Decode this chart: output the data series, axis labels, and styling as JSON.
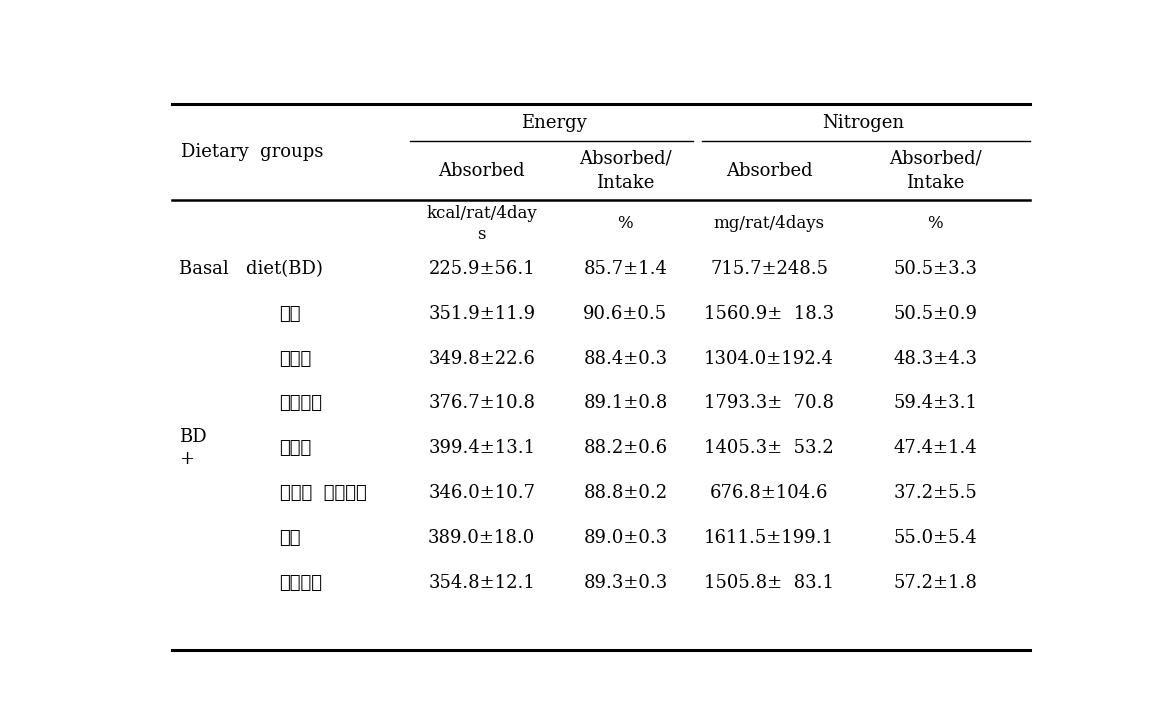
{
  "energy_group_label": "Energy",
  "nitrogen_group_label": "Nitrogen",
  "dietary_groups_label": "Dietary  groups",
  "subheader_labels": [
    "Absorbed",
    "Absorbed/\nIntake",
    "Absorbed",
    "Absorbed/\nIntake"
  ],
  "unit_labels": [
    "kcal/rat/4day\ns",
    "%",
    "mg/rat/4days",
    "%"
  ],
  "rows": [
    [
      "Basal   diet(BD)",
      "225.9±56.1",
      "85.7±1.4",
      "715.7±248.5",
      "50.5±3.3"
    ],
    [
      "",
      "351.9±11.9",
      "90.6±0.5",
      "1560.9±  18.3",
      "50.5±0.9"
    ],
    [
      "",
      "349.8±22.6",
      "88.4±0.3",
      "1304.0±192.4",
      "48.3±4.3"
    ],
    [
      "",
      "376.7±10.8",
      "89.1±0.8",
      "1793.3±  70.8",
      "59.4±3.1"
    ],
    [
      "",
      "399.4±13.1",
      "88.2±0.6",
      "1405.3±  53.2",
      "47.4±1.4"
    ],
    [
      "",
      "346.0±10.7",
      "88.8±0.2",
      "676.8±104.6",
      "37.2±5.5"
    ],
    [
      "",
      "389.0±18.0",
      "89.0±0.3",
      "1611.5±199.1",
      "55.0±5.4"
    ],
    [
      "",
      "354.8±12.1",
      "89.3±0.3",
      "1505.8±  83.1",
      "57.2±1.8"
    ]
  ],
  "bg_color": "#ffffff",
  "text_color": "#000000",
  "line_color": "#000000",
  "font_size": 13,
  "header_font_size": 13
}
